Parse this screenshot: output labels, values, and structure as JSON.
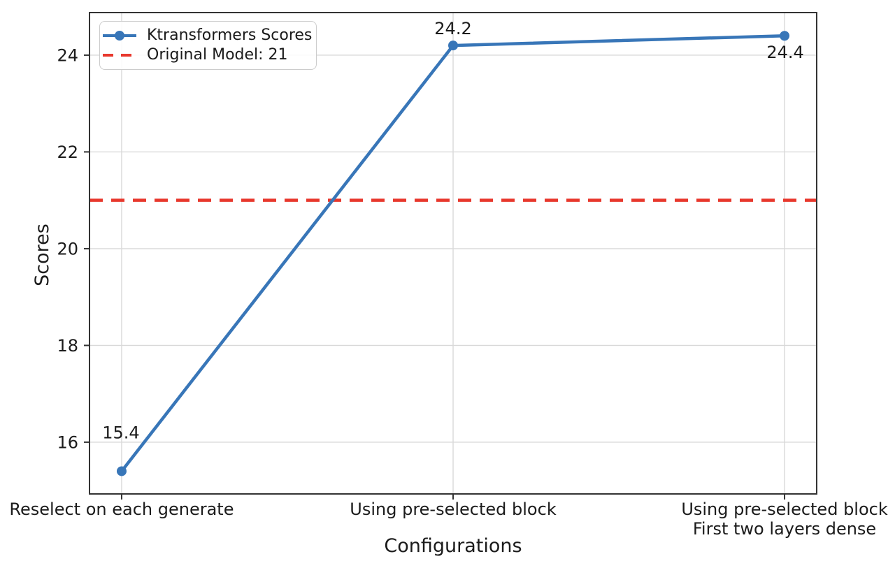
{
  "chart_data": {
    "type": "line",
    "title": "",
    "xlabel": "Configurations",
    "ylabel": "Scores",
    "categories": [
      "Reselect on each generate",
      "Using pre-selected block",
      "Using pre-selected block\nFirst two layers dense"
    ],
    "series": [
      {
        "name": "Ktransformers Scores",
        "values": [
          15.4,
          24.2,
          24.4
        ],
        "color": "#3876b8",
        "marker": "circle"
      }
    ],
    "point_labels": [
      "15.4",
      "24.2",
      "24.4"
    ],
    "reference_line": {
      "label": "Original Model: 21",
      "value": 21,
      "color": "#e8382d",
      "style": "dashed"
    },
    "yticks": [
      16,
      18,
      20,
      22,
      24
    ],
    "ylim": [
      14.93,
      24.88
    ],
    "grid": true,
    "legend_position": "upper-left",
    "colors": {
      "grid": "#d9d9d9",
      "spine": "#333333",
      "text": "#1b1b1b"
    }
  }
}
